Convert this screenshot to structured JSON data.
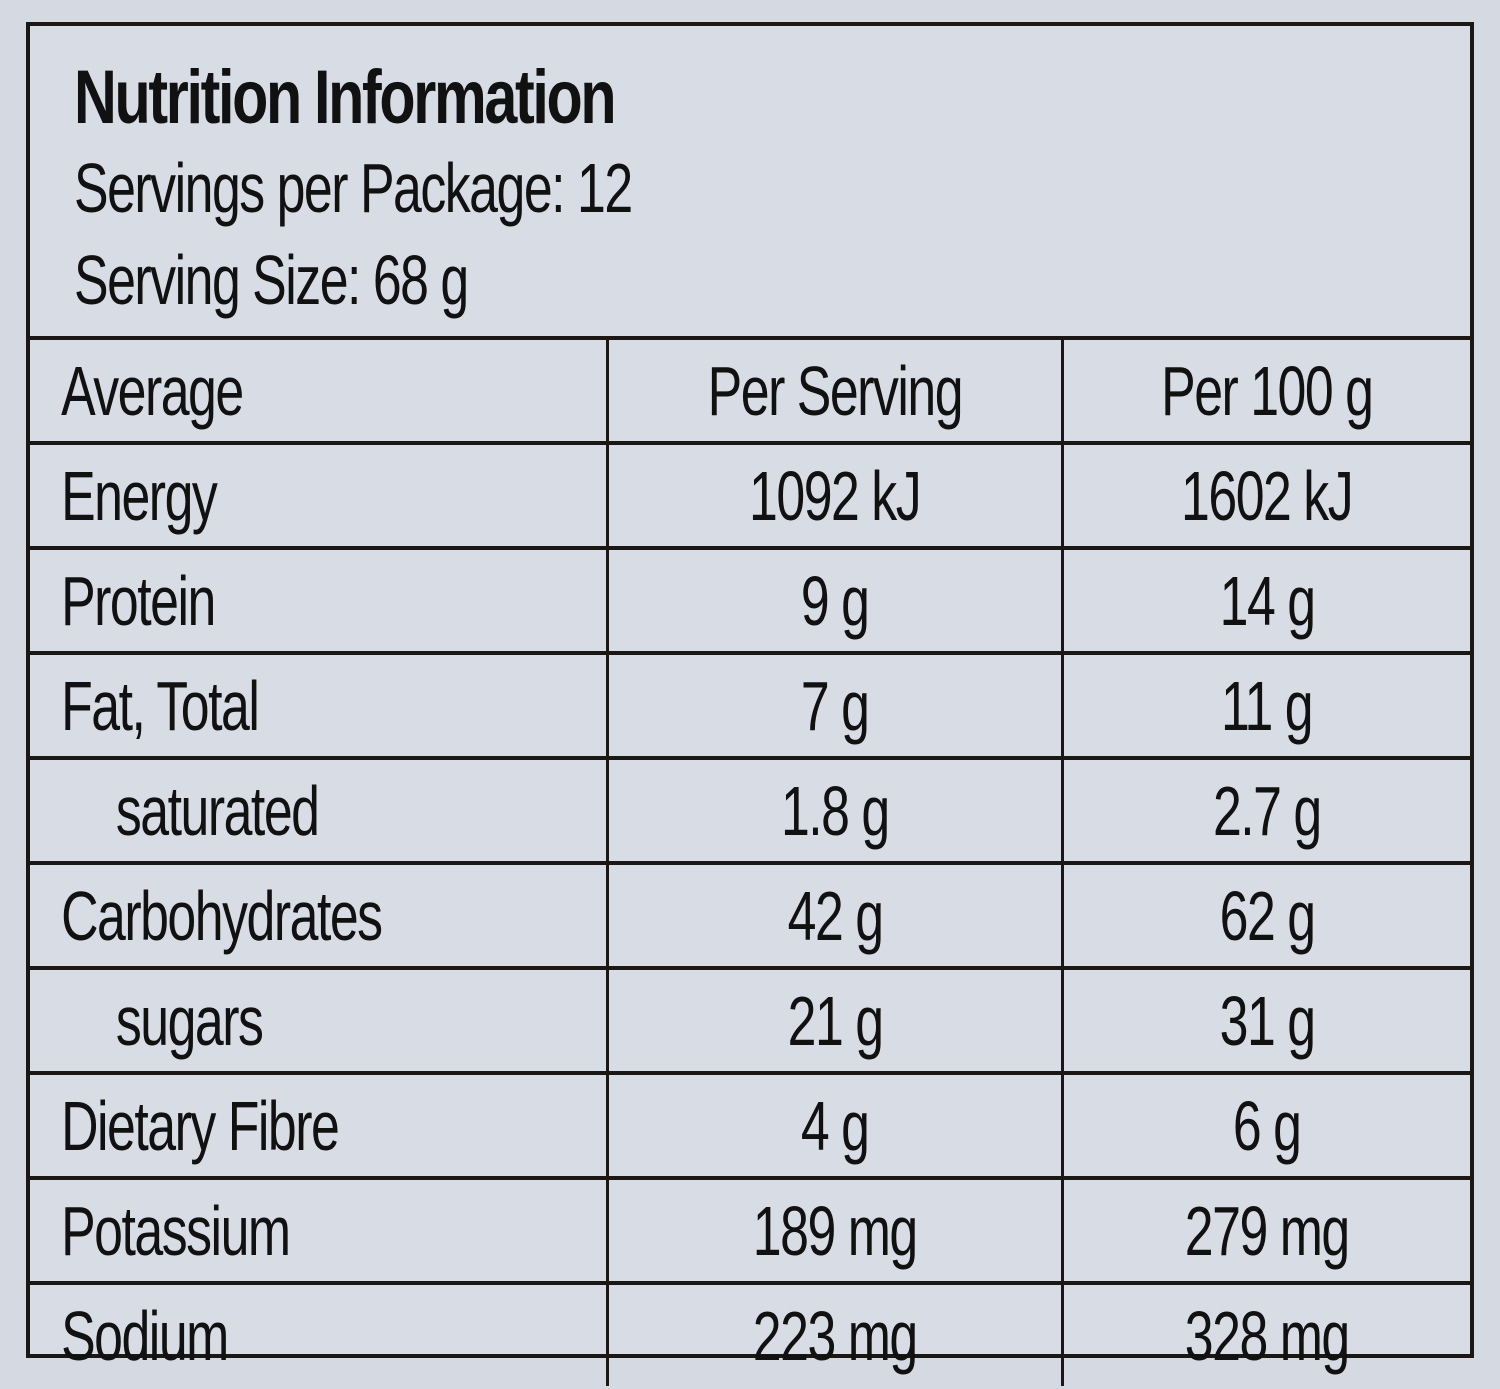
{
  "label": {
    "title": "Nutrition Information",
    "servings_per_package": "Servings per Package: 12",
    "serving_size": "Serving Size: 68 g"
  },
  "table": {
    "headers": [
      "Average",
      "Per Serving",
      "Per 100 g"
    ],
    "rows": [
      {
        "nutrient": "Energy",
        "per_serving": "1092 kJ",
        "per_100g": "1602 kJ",
        "indent": false
      },
      {
        "nutrient": "Protein",
        "per_serving": "9 g",
        "per_100g": "14 g",
        "indent": false
      },
      {
        "nutrient": "Fat, Total",
        "per_serving": "7 g",
        "per_100g": "11 g",
        "indent": false
      },
      {
        "nutrient": "saturated",
        "per_serving": "1.8 g",
        "per_100g": "2.7 g",
        "indent": true
      },
      {
        "nutrient": "Carbohydrates",
        "per_serving": "42 g",
        "per_100g": "62 g",
        "indent": false
      },
      {
        "nutrient": "sugars",
        "per_serving": "21 g",
        "per_100g": "31 g",
        "indent": true
      },
      {
        "nutrient": "Dietary Fibre",
        "per_serving": "4 g",
        "per_100g": "6 g",
        "indent": false
      },
      {
        "nutrient": "Potassium",
        "per_serving": "189 mg",
        "per_100g": "279 mg",
        "indent": false
      },
      {
        "nutrient": "Sodium",
        "per_serving": "223 mg",
        "per_100g": "328 mg",
        "indent": false
      }
    ]
  },
  "colors": {
    "background": "#d5d9e2",
    "ink": "#1a1714"
  }
}
